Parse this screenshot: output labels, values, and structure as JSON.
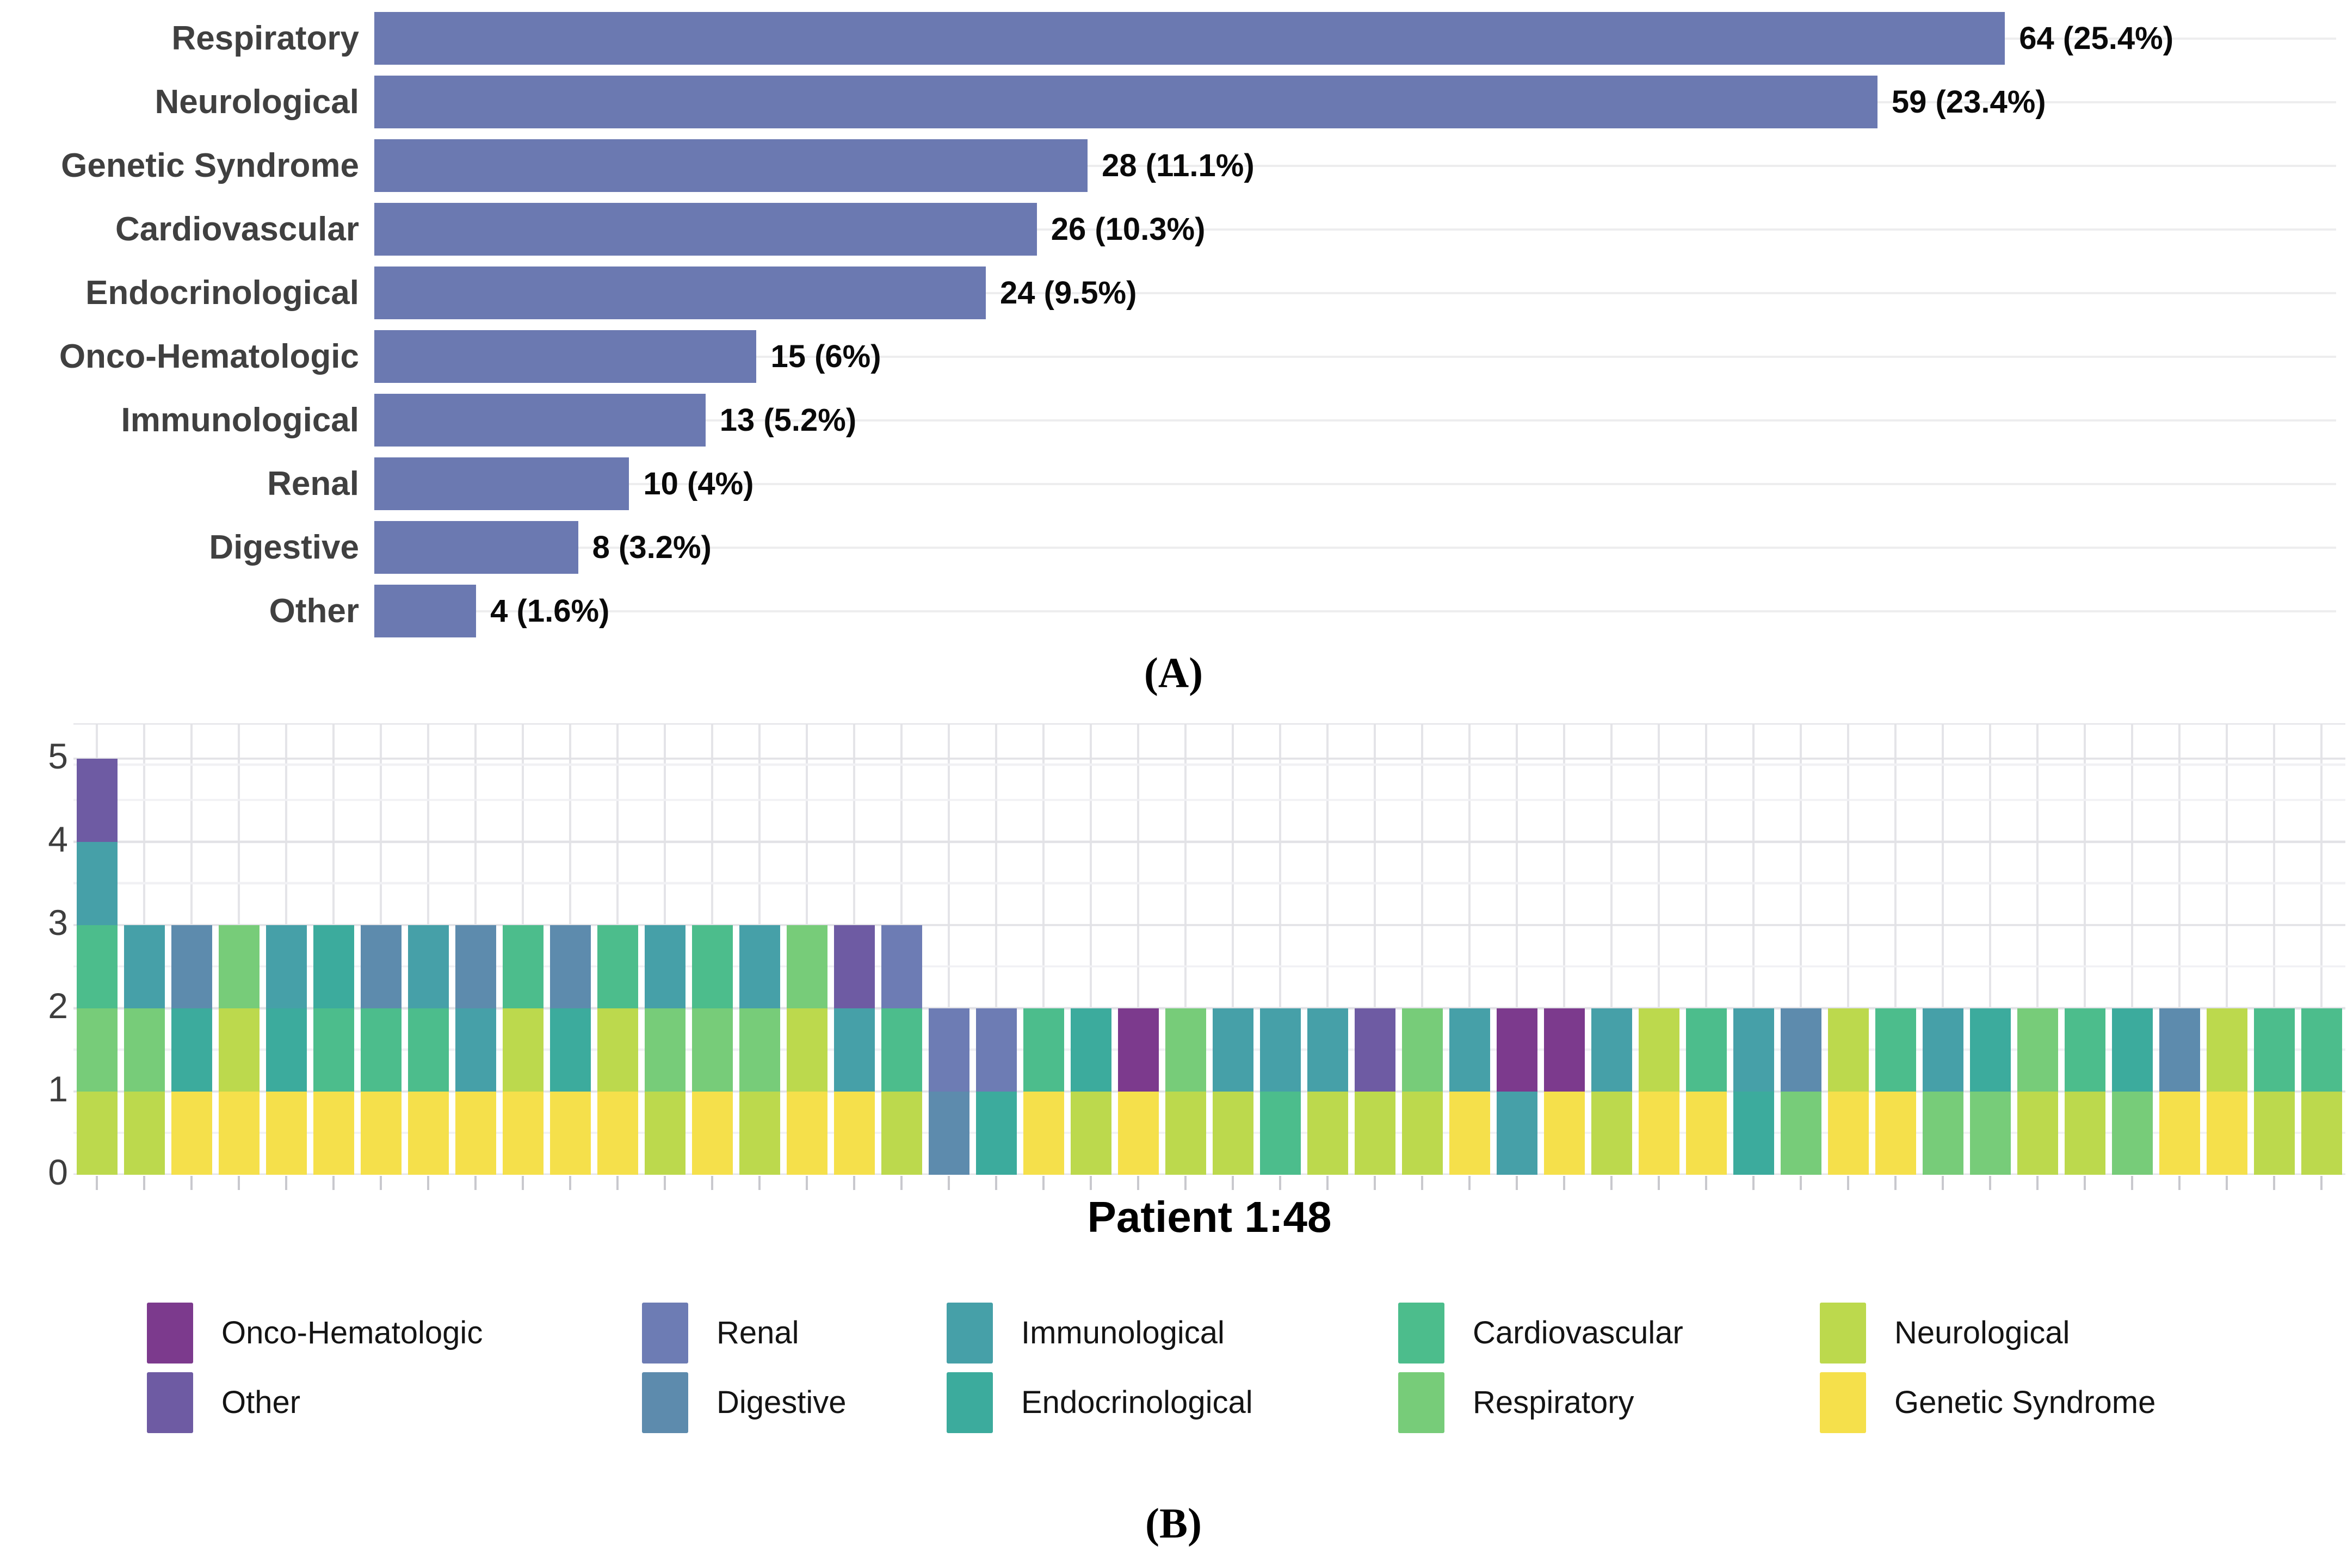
{
  "figure_labels": {
    "panel_a": "(A)",
    "panel_b": "(B)"
  },
  "categories": {
    "onco": {
      "name": "Onco-Hematologic",
      "color": "#7c3a8d"
    },
    "other": {
      "name": "Other",
      "color": "#6e5ba3"
    },
    "renal": {
      "name": "Renal",
      "color": "#6d7cb4"
    },
    "digestive": {
      "name": "Digestive",
      "color": "#5d8bad"
    },
    "immuno": {
      "name": "Immunological",
      "color": "#46a0a8"
    },
    "endo": {
      "name": "Endocrinological",
      "color": "#3cab9d"
    },
    "cardio": {
      "name": "Cardiovascular",
      "color": "#4cbd8c"
    },
    "resp": {
      "name": "Respiratory",
      "color": "#77cc79"
    },
    "neuro": {
      "name": "Neurological",
      "color": "#bcd94d"
    },
    "gs": {
      "name": "Genetic Syndrome",
      "color": "#f5e04b"
    }
  },
  "chart_data": [
    {
      "type": "bar",
      "panel": "A",
      "orientation": "horizontal",
      "bar_color": "#6b79b1",
      "grid": "horizontal line per category",
      "xlim": [
        0,
        77
      ],
      "categories": [
        "Respiratory",
        "Neurological",
        "Genetic Syndrome",
        "Cardiovascular",
        "Endocrinological",
        "Onco-Hematologic",
        "Immunological",
        "Renal",
        "Digestive",
        "Other"
      ],
      "values": [
        64,
        59,
        28,
        26,
        24,
        15,
        13,
        10,
        8,
        4
      ],
      "value_labels": [
        "64 (25.4%)",
        "59 (23.4%)",
        "28 (11.1%)",
        "26 (10.3%)",
        "24 (9.5%)",
        "15 (6%)",
        "13 (5.2%)",
        "10 (4%)",
        "8 (3.2%)",
        "4 (1.6%)"
      ]
    },
    {
      "type": "bar",
      "panel": "B",
      "stacked": true,
      "xlabel": "Patient 1:48",
      "n_patients": 48,
      "segment_value": 1,
      "ylim": [
        0,
        5
      ],
      "y_ticks": [
        "0",
        "1",
        "2",
        "3",
        "4",
        "5"
      ],
      "grid": "on",
      "legend_position": "bottom",
      "legend_columns": [
        [
          "onco",
          "other"
        ],
        [
          "renal",
          "digestive"
        ],
        [
          "immuno",
          "endo"
        ],
        [
          "cardio",
          "resp"
        ],
        [
          "neuro",
          "gs"
        ]
      ],
      "patients": [
        [
          "neuro",
          "resp",
          "cardio",
          "immuno",
          "other"
        ],
        [
          "neuro",
          "resp",
          "immuno"
        ],
        [
          "gs",
          "endo",
          "digestive"
        ],
        [
          "gs",
          "neuro",
          "resp"
        ],
        [
          "gs",
          "endo",
          "immuno"
        ],
        [
          "gs",
          "cardio",
          "endo"
        ],
        [
          "gs",
          "cardio",
          "digestive"
        ],
        [
          "gs",
          "cardio",
          "immuno"
        ],
        [
          "gs",
          "immuno",
          "digestive"
        ],
        [
          "gs",
          "neuro",
          "cardio"
        ],
        [
          "gs",
          "endo",
          "digestive"
        ],
        [
          "gs",
          "neuro",
          "cardio"
        ],
        [
          "neuro",
          "resp",
          "immuno"
        ],
        [
          "gs",
          "resp",
          "cardio"
        ],
        [
          "neuro",
          "resp",
          "immuno"
        ],
        [
          "gs",
          "neuro",
          "resp"
        ],
        [
          "gs",
          "immuno",
          "other"
        ],
        [
          "neuro",
          "cardio",
          "renal"
        ],
        [
          "digestive",
          "renal"
        ],
        [
          "endo",
          "renal"
        ],
        [
          "gs",
          "cardio"
        ],
        [
          "neuro",
          "endo"
        ],
        [
          "gs",
          "onco"
        ],
        [
          "neuro",
          "resp"
        ],
        [
          "neuro",
          "immuno"
        ],
        [
          "cardio",
          "immuno"
        ],
        [
          "neuro",
          "immuno"
        ],
        [
          "neuro",
          "other"
        ],
        [
          "neuro",
          "resp"
        ],
        [
          "gs",
          "immuno"
        ],
        [
          "immuno",
          "onco"
        ],
        [
          "gs",
          "onco"
        ],
        [
          "neuro",
          "immuno"
        ],
        [
          "gs",
          "neuro"
        ],
        [
          "gs",
          "cardio"
        ],
        [
          "endo",
          "immuno"
        ],
        [
          "resp",
          "digestive"
        ],
        [
          "gs",
          "neuro"
        ],
        [
          "gs",
          "cardio"
        ],
        [
          "resp",
          "immuno"
        ],
        [
          "resp",
          "endo"
        ],
        [
          "neuro",
          "resp"
        ],
        [
          "neuro",
          "cardio"
        ],
        [
          "resp",
          "endo"
        ],
        [
          "gs",
          "digestive"
        ],
        [
          "gs",
          "neuro"
        ],
        [
          "neuro",
          "cardio"
        ],
        [
          "neuro",
          "cardio"
        ]
      ]
    }
  ]
}
